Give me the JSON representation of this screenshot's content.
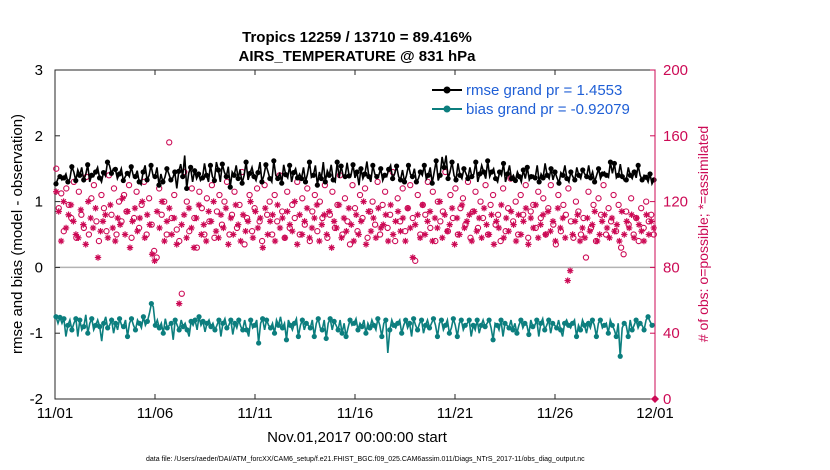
{
  "chart_data": {
    "type": "line",
    "title_line1": "Tropics 12259 / 13710 = 89.416%",
    "title_line2": "AIRS_TEMPERATURE @ 831 hPa",
    "xlabel": "Nov.01,2017 00:00:00 start",
    "ylabel_left": "rmse and bias (model - observation)",
    "ylabel_right": "# of obs: o=possible; *=assimilated",
    "xlim": [
      0,
      30
    ],
    "ylim_left": [
      -2,
      3
    ],
    "ylim_right": [
      0,
      200
    ],
    "x_ticks": [
      {
        "value": 0,
        "label": "11/01"
      },
      {
        "value": 5,
        "label": "11/06"
      },
      {
        "value": 10,
        "label": "11/11"
      },
      {
        "value": 15,
        "label": "11/16"
      },
      {
        "value": 20,
        "label": "11/21"
      },
      {
        "value": 25,
        "label": "11/26"
      },
      {
        "value": 30,
        "label": "12/01"
      }
    ],
    "y_ticks_left": [
      -2,
      -1,
      0,
      1,
      2,
      3
    ],
    "y_ticks_right": [
      0,
      40,
      80,
      120,
      160,
      200
    ],
    "footer": "data file: /Users/raeder/DAI/ATM_forcXX/CAM6_setup/f.e21.FHIST_BGC.f09_025.CAM6assim.011/Diags_NTrS_2017-11/obs_diag_output.nc",
    "series": [
      {
        "name": "rmse grand pr = 1.4553",
        "color": "#000000",
        "marker": "star",
        "axis": "left",
        "values": [
          1.27,
          1.35,
          1.38,
          1.33,
          1.36,
          1.42,
          1.3,
          1.35,
          1.53,
          1.45,
          1.32,
          1.48,
          1.4,
          1.52,
          1.33,
          1.41,
          1.56,
          1.3,
          1.4,
          1.38,
          1.45,
          1.52,
          1.36,
          1.3,
          1.44,
          1.39,
          1.6,
          1.55,
          1.43,
          1.5,
          1.49,
          1.35,
          1.42,
          1.5,
          1.32,
          1.38,
          1.43,
          1.38,
          1.53,
          1.4,
          1.38,
          1.47,
          1.3,
          1.26,
          1.45,
          1.55,
          1.33,
          1.4,
          1.55,
          1.4,
          1.38,
          1.52,
          1.25,
          1.42,
          1.3,
          1.37,
          1.5,
          1.42,
          1.33,
          1.36,
          1.45,
          1.2,
          1.46,
          1.57,
          1.38,
          1.7,
          1.2,
          1.43,
          1.52,
          1.3,
          1.47,
          1.35,
          1.42,
          1.32,
          1.36,
          1.58,
          1.4,
          1.3,
          1.55,
          1.38,
          1.32,
          1.6,
          1.48,
          1.3,
          1.57,
          1.45,
          1.38,
          1.53,
          1.22,
          1.45,
          1.4,
          1.55,
          1.35,
          1.49,
          1.28,
          1.4,
          1.6,
          1.33,
          1.43,
          1.52,
          1.38,
          1.32,
          1.44,
          1.6,
          1.3,
          1.4,
          1.56,
          1.46,
          1.35,
          1.3,
          1.62,
          1.4,
          1.35,
          1.44,
          1.28,
          1.56,
          1.41,
          1.36,
          1.55,
          1.3,
          1.44,
          1.5,
          1.36,
          1.42,
          1.35,
          1.52,
          1.3,
          1.42,
          1.6,
          1.37,
          1.4,
          1.55,
          1.25,
          1.45,
          1.35,
          1.6,
          1.3,
          1.47,
          1.4,
          1.56,
          1.33,
          1.3,
          1.6,
          1.36,
          1.54,
          1.4,
          1.38,
          1.59,
          1.39,
          1.4,
          1.56,
          1.36,
          1.45,
          1.25,
          1.5,
          1.35,
          1.42,
          1.61,
          1.38,
          1.3,
          1.55,
          1.42,
          1.38,
          1.4,
          1.5,
          1.32,
          1.4,
          1.38,
          1.49,
          1.55,
          1.35,
          1.42,
          1.54,
          1.38,
          1.33,
          1.48,
          1.3,
          1.4,
          1.55,
          1.42,
          1.38,
          1.5,
          1.3,
          1.35,
          1.45,
          1.4,
          1.55,
          1.34,
          1.4,
          1.52,
          1.28,
          1.45,
          1.62,
          1.32,
          1.4,
          1.68,
          1.52,
          1.7,
          1.35,
          1.45,
          1.6,
          1.4,
          1.33,
          1.58,
          1.4,
          1.35,
          1.5,
          1.43,
          1.35,
          1.52,
          1.38,
          1.42,
          1.6,
          1.3,
          1.42,
          1.55,
          1.45,
          1.35,
          1.62,
          1.38,
          1.45,
          1.5,
          1.35,
          1.3,
          1.45,
          1.4,
          1.58,
          1.3,
          1.42,
          1.55,
          1.35,
          1.4,
          1.32,
          1.45,
          1.38,
          1.3,
          1.48,
          1.35,
          1.52,
          1.33,
          1.38,
          1.4,
          1.36,
          1.55,
          1.3,
          1.42,
          1.36,
          1.58,
          1.4,
          1.35,
          1.5,
          1.33,
          1.45,
          1.36,
          1.28,
          1.44,
          1.4,
          1.55,
          1.35,
          1.3,
          1.45,
          1.38,
          1.33,
          1.52,
          1.4,
          1.35,
          1.48,
          1.42,
          1.38,
          1.55,
          1.36,
          1.45,
          1.3,
          1.4,
          1.5,
          1.35,
          1.42,
          1.45,
          1.4,
          1.37,
          1.6,
          1.43,
          1.58,
          1.36,
          1.4,
          1.57,
          1.38,
          1.32,
          1.33,
          1.52,
          1.4,
          1.35,
          1.45,
          1.36,
          1.55,
          1.4,
          1.33,
          1.4,
          1.37,
          1.3,
          1.42,
          1.27,
          1.33
        ]
      },
      {
        "name": "bias grand pr = -0.92079",
        "color": "#0c7e7e",
        "marker": "circle",
        "axis": "left",
        "values": [
          -0.75,
          -0.85,
          -0.76,
          -0.85,
          -0.78,
          -1.05,
          -0.88,
          -0.8,
          -0.95,
          -0.85,
          -0.78,
          -1.05,
          -0.8,
          -0.95,
          -0.9,
          -0.72,
          -1.0,
          -0.85,
          -0.78,
          -0.95,
          -0.88,
          -0.8,
          -0.9,
          -1.12,
          -0.85,
          -0.75,
          -0.92,
          -0.88,
          -0.8,
          -1.0,
          -0.85,
          -0.95,
          -0.78,
          -0.88,
          -0.9,
          -0.8,
          -1.05,
          -0.85,
          -0.78,
          -0.88,
          -0.95,
          -0.8,
          -0.85,
          -0.92,
          -0.75,
          -0.88,
          -0.82,
          -0.7,
          -0.55,
          -0.6,
          -0.88,
          -0.8,
          -0.92,
          -0.85,
          -1.0,
          -0.78,
          -0.92,
          -0.88,
          -0.85,
          -1.1,
          -0.8,
          -0.88,
          -0.95,
          -0.8,
          -0.9,
          -0.85,
          -0.95,
          -1.05,
          -0.82,
          -0.88,
          -0.8,
          -0.95,
          -0.75,
          -0.88,
          -0.82,
          -0.98,
          -0.85,
          -0.8,
          -0.9,
          -0.85,
          -0.95,
          -0.88,
          -0.8,
          -1.05,
          -0.85,
          -0.78,
          -0.92,
          -0.88,
          -0.8,
          -1.02,
          -0.85,
          -0.92,
          -0.8,
          -0.9,
          -0.95,
          -0.8,
          -0.95,
          -1.05,
          -0.8,
          -0.92,
          -0.88,
          -0.8,
          -1.15,
          -0.85,
          -0.78,
          -0.95,
          -0.8,
          -0.88,
          -0.92,
          -0.85,
          -1.0,
          -0.8,
          -0.88,
          -0.75,
          -0.92,
          -0.85,
          -1.1,
          -0.8,
          -0.88,
          -0.95,
          -0.85,
          -0.78,
          -1.05,
          -0.88,
          -0.8,
          -0.95,
          -0.85,
          -0.88,
          -0.92,
          -0.8,
          -1.05,
          -0.85,
          -0.78,
          -0.92,
          -0.95,
          -0.8,
          -1.08,
          -0.85,
          -0.78,
          -0.95,
          -0.82,
          -0.88,
          -0.95,
          -0.8,
          -1.0,
          -0.85,
          -1.05,
          -0.92,
          -0.8,
          -0.88,
          -0.85,
          -0.78,
          -0.95,
          -0.85,
          -0.9,
          -0.8,
          -1.0,
          -0.85,
          -0.92,
          -0.8,
          -0.88,
          -0.95,
          -0.78,
          -0.88,
          -1.05,
          -0.85,
          -0.8,
          -1.3,
          -0.95,
          -0.8,
          -0.88,
          -0.92,
          -0.85,
          -0.8,
          -1.0,
          -0.88,
          -0.8,
          -0.92,
          -0.85,
          -1.05,
          -0.78,
          -0.88,
          -0.95,
          -0.85,
          -0.8,
          -1.0,
          -0.88,
          -0.8,
          -0.92,
          -0.85,
          -0.78,
          -0.88,
          -1.05,
          -0.85,
          -0.8,
          -0.95,
          -0.88,
          -0.8,
          -1.0,
          -0.92,
          -0.78,
          -0.88,
          -1.05,
          -0.85,
          -0.8,
          -0.95,
          -0.88,
          -0.85,
          -0.8,
          -1.05,
          -0.88,
          -0.95,
          -0.8,
          -1.0,
          -0.88,
          -0.8,
          -0.9,
          -0.85,
          -0.8,
          -0.92,
          -1.1,
          -0.85,
          -0.88,
          -0.95,
          -0.8,
          -1.05,
          -0.85,
          -0.88,
          -0.92,
          -0.8,
          -0.95,
          -0.85,
          -1.0,
          -0.88,
          -0.8,
          -0.92,
          -0.85,
          -0.88,
          -1.02,
          -0.8,
          -0.9,
          -0.88,
          -0.8,
          -1.05,
          -0.85,
          -0.78,
          -0.95,
          -0.88,
          -0.8,
          -1.0,
          -0.85,
          -0.88,
          -0.92,
          -0.8,
          -0.95,
          -1.05,
          -0.85,
          -0.8,
          -0.88,
          -0.92,
          -0.85,
          -0.8,
          -1.05,
          -0.88,
          -0.95,
          -0.8,
          -0.88,
          -1.0,
          -0.85,
          -0.92,
          -0.8,
          -0.88,
          -1.05,
          -0.85,
          -0.8,
          -0.92,
          -0.88,
          -0.85,
          -1.0,
          -0.8,
          -0.88,
          -0.95,
          -1.05,
          -0.85,
          -1.35,
          -0.92,
          -0.85,
          -0.88,
          -1.05,
          -0.8,
          -0.95,
          -0.88,
          -0.8,
          -0.92,
          -0.85,
          -0.88,
          -0.95,
          -0.8,
          -0.75,
          -0.82,
          -0.88,
          -0.85
        ]
      },
      {
        "name": "possible obs",
        "color": "#cc0a55",
        "marker": "open-circle",
        "axis": "right",
        "values": [
          140,
          116,
          125,
          102,
          128,
          118,
          110,
          132,
          98,
          126,
          112,
          104,
          135,
          100,
          122,
          130,
          108,
          96,
          124,
          116,
          102,
          136,
          112,
          128,
          100,
          120,
          108,
          124,
          114,
          130,
          98,
          110,
          126,
          104,
          118,
          132,
          100,
          122,
          106,
          90,
          86,
          128,
          112,
          120,
          100,
          156,
          110,
          124,
          103,
          96,
          64,
          138,
          120,
          102,
          128,
          110,
          92,
          126,
          116,
          100,
          122,
          108,
          130,
          98,
          114,
          124,
          106,
          120,
          132,
          100,
          112,
          126,
          104,
          118,
          138,
          94,
          110,
          124,
          102,
          116,
          128,
          108,
          96,
          130,
          112,
          120,
          100,
          124,
          108,
          136,
          114,
          98,
          126,
          104,
          118,
          110,
          132,
          100,
          122,
          106,
          128,
          96,
          114,
          124,
          102,
          120,
          110,
          130,
          98,
          112,
          126,
          104,
          118,
          136,
          100,
          122,
          108,
          94,
          130,
          116,
          102,
          124,
          110,
          128,
          98,
          114,
          120,
          106,
          132,
          100,
          118,
          126,
          104,
          112,
          138,
          96,
          122,
          108,
          128,
          102,
          116,
          130,
          110,
          84,
          124,
          100,
          118,
          112,
          132,
          104,
          126,
          96,
          120,
          108,
          114,
          138,
          102,
          124,
          110,
          128,
          100,
          116,
          122,
          106,
          132,
          98,
          114,
          126,
          104,
          120,
          110,
          130,
          100,
          118,
          124,
          106,
          112,
          96,
          128,
          102,
          116,
          134,
          108,
          120,
          100,
          124,
          112,
          130,
          98,
          114,
          118,
          104,
          126,
          110,
          122,
          100,
          116,
          130,
          106,
          94,
          124,
          102,
          118,
          112,
          128,
          108,
          98,
          120,
          114,
          100,
          110,
          86,
          126,
          104,
          118,
          96,
          122,
          112,
          130,
          100,
          116,
          108,
          124,
          102,
          118,
          92,
          88,
          114,
          106,
          122,
          100,
          110,
          96,
          116,
          104,
          120,
          108,
          112,
          100
        ]
      },
      {
        "name": "assimilated obs",
        "color": "#cc0a55",
        "marker": "asterisk",
        "axis": "right",
        "values": [
          126,
          114,
          96,
          120,
          104,
          112,
          118,
          108,
          100,
          98,
          115,
          106,
          94,
          120,
          110,
          104,
          116,
          86,
          102,
          108,
          112,
          98,
          118,
          104,
          96,
          110,
          106,
          122,
          100,
          114,
          92,
          108,
          116,
          102,
          110,
          120,
          98,
          112,
          106,
          88,
          84,
          114,
          104,
          120,
          96,
          108,
          116,
          100,
          110,
          94,
          58,
          106,
          112,
          98,
          116,
          104,
          92,
          110,
          118,
          100,
          106,
          96,
          114,
          108,
          120,
          102,
          98,
          112,
          104,
          116,
          94,
          110,
          100,
          118,
          106,
          96,
          112,
          102,
          108,
          120,
          98,
          114,
          104,
          110,
          92,
          116,
          100,
          108,
          112,
          96,
          118,
          104,
          110,
          98,
          114,
          106,
          102,
          120,
          94,
          112,
          100,
          108,
          116,
          98,
          104,
          110,
          118,
          96,
          106,
          112,
          100,
          114,
          92,
          108,
          104,
          118,
          98,
          110,
          102,
          116,
          106,
          96,
          112,
          100,
          108,
          120,
          94,
          114,
          102,
          110,
          98,
          116,
          104,
          106,
          112,
          96,
          118,
          100,
          108,
          114,
          102,
          110,
          96,
          116,
          104,
          86,
          106,
          112,
          98,
          118,
          100,
          108,
          114,
          96,
          110,
          104,
          120,
          98,
          112,
          102,
          106,
          116,
          94,
          110,
          100,
          118,
          104,
          108,
          112,
          96,
          114,
          102,
          110,
          98,
          116,
          106,
          100,
          112,
          94,
          108,
          104,
          118,
          98,
          110,
          102,
          114,
          106,
          96,
          112,
          100,
          108,
          116,
          94,
          110,
          104,
          118,
          98,
          106,
          112,
          100,
          114,
          102,
          108,
          96,
          116,
          104,
          110,
          98,
          72,
          78,
          100,
          108,
          112,
          96,
          104,
          98,
          110,
          102,
          106,
          114,
          96,
          100,
          108,
          112,
          104,
          98,
          110,
          102,
          106,
          96,
          114,
          100,
          108,
          104,
          112,
          98,
          110,
          106,
          102,
          96,
          112,
          100,
          108,
          104
        ]
      }
    ]
  }
}
